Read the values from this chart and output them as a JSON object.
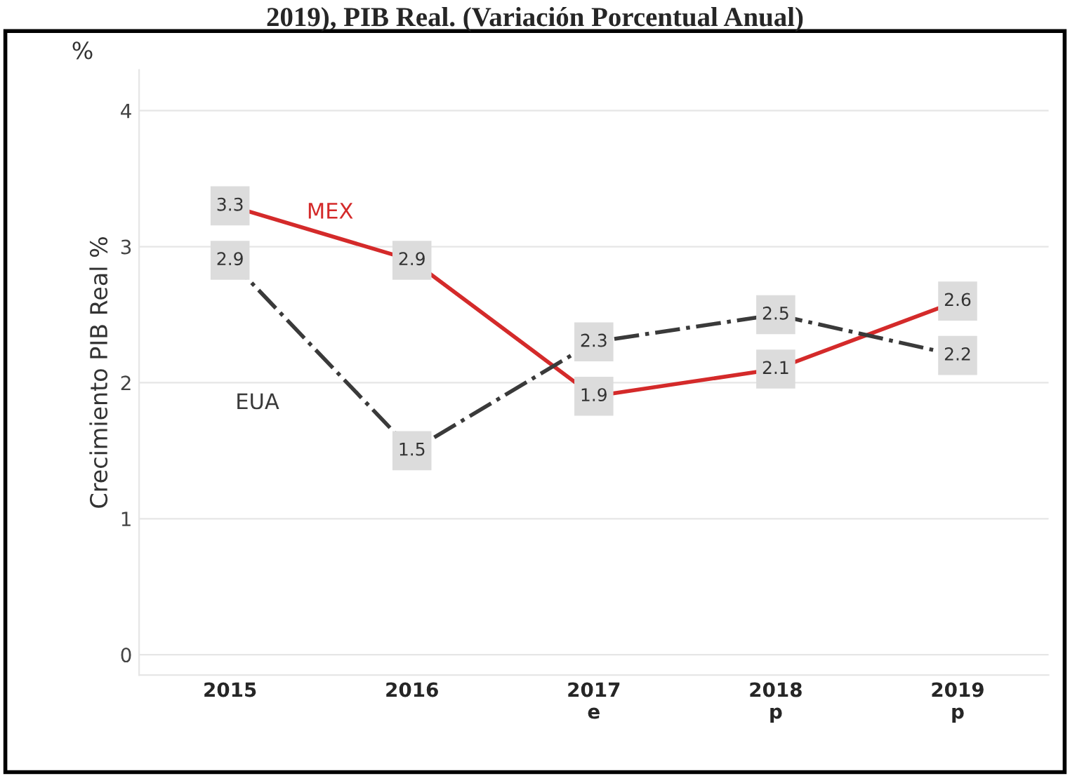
{
  "chart_data": {
    "type": "line",
    "title": "2019), PIB Real. (Variación Porcentual Anual)",
    "ylabel": "Crecimiento PIB Real %",
    "annotations": [
      "%"
    ],
    "categories": [
      "2015",
      "2016",
      "2017\ne",
      "2018\np",
      "2019\np"
    ],
    "series": [
      {
        "name": "MEX",
        "color": "#d42a2a",
        "values": [
          3.3,
          2.9,
          1.9,
          2.1,
          2.6
        ],
        "line_style": "solid"
      },
      {
        "name": "EUA",
        "color": "#3a3a3a",
        "values": [
          2.9,
          1.5,
          2.3,
          2.5,
          2.2
        ],
        "line_style": "dashed"
      }
    ],
    "ylim": [
      -0.15,
      4.3
    ],
    "yticks": [
      0,
      1,
      2,
      3,
      4
    ],
    "grid": "y",
    "data_labels": true,
    "legend": false,
    "marker": "square"
  }
}
